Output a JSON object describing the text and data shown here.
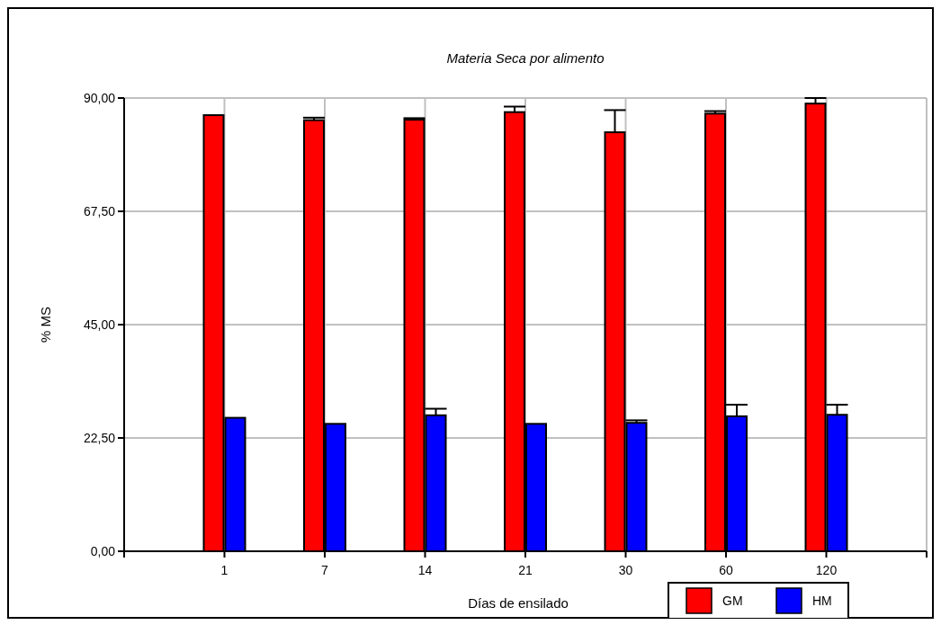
{
  "chart_data": {
    "type": "bar",
    "title": "Materia Seca por alimento",
    "xlabel": "Días de ensilado",
    "ylabel": "% MS",
    "categories": [
      "1",
      "7",
      "14",
      "21",
      "30",
      "60",
      "120"
    ],
    "series": [
      {
        "name": "GM",
        "color": "#ff0000",
        "values": [
          86.6,
          85.6,
          85.7,
          87.2,
          83.2,
          86.9,
          88.9
        ],
        "errors": [
          null,
          [
            85.6,
            86.1
          ],
          [
            85.7,
            86.0
          ],
          [
            87.2,
            88.3
          ],
          [
            83.2,
            87.6
          ],
          [
            86.9,
            87.4
          ],
          [
            88.9,
            90.0
          ]
        ]
      },
      {
        "name": "HM",
        "color": "#0000ff",
        "values": [
          26.5,
          25.3,
          27.0,
          25.3,
          25.5,
          26.8,
          27.1
        ],
        "errors": [
          null,
          null,
          [
            27.0,
            28.3
          ],
          null,
          [
            25.5,
            26.0
          ],
          [
            26.8,
            29.1
          ],
          [
            27.1,
            29.1
          ]
        ]
      }
    ],
    "ylim": [
      0,
      90
    ],
    "yticks": [
      {
        "value": 0,
        "label": "0,00"
      },
      {
        "value": 22.5,
        "label": "22,50"
      },
      {
        "value": 45,
        "label": "45,00"
      },
      {
        "value": 67.5,
        "label": "67,50"
      },
      {
        "value": 90,
        "label": "90,00"
      }
    ],
    "grid": true,
    "legend": "bottom right"
  }
}
